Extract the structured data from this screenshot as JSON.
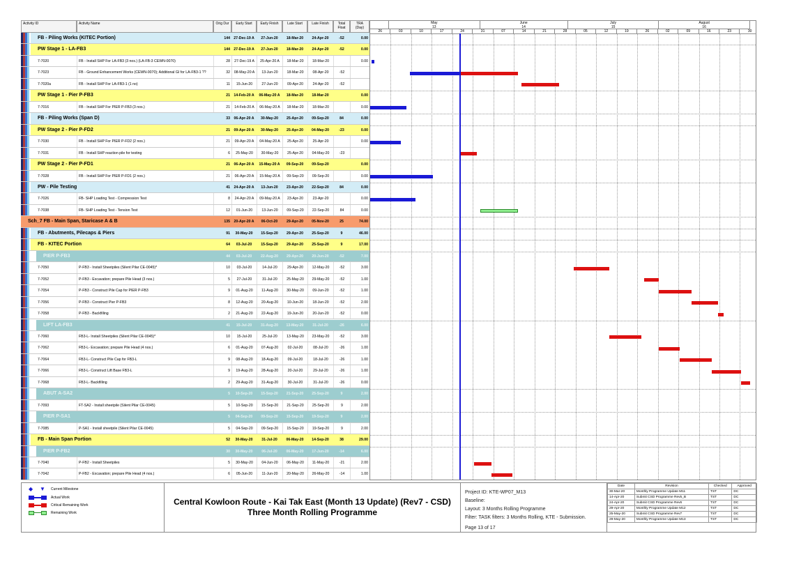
{
  "columns": {
    "activity_id": "Activity ID",
    "activity_name": "Activity Name",
    "orig_dur": "Orig Dur",
    "early_start": "Early Start",
    "early_finish": "Early Finish",
    "late_start": "Late Start",
    "late_finish": "Late Finish",
    "total_float": "Total Float",
    "tra": "TRA (Day)"
  },
  "timescale": {
    "months": [
      {
        "label": "May",
        "num": "13"
      },
      {
        "label": "June",
        "num": "14"
      },
      {
        "label": "July",
        "num": "15"
      },
      {
        "label": "August",
        "num": "16"
      }
    ],
    "weeks": [
      "26",
      "03",
      "10",
      "17",
      "24",
      "31",
      "07",
      "14",
      "21",
      "28",
      "05",
      "12",
      "19",
      "26",
      "02",
      "09",
      "16",
      "23",
      "30"
    ],
    "start_date": "2020-04-26",
    "data_date": "2020-05-25"
  },
  "colors": {
    "wbs1": "#d3ecf6",
    "wbs2": "#ffff88",
    "orange": "#f79b6c",
    "teal": "#9dcdcf",
    "actual": "#1a1ad6",
    "critical": "#dd1111",
    "remaining": "#90ee90",
    "data_date": "#1a1ad6"
  },
  "rows": [
    {
      "type": "g1",
      "id": "",
      "name": "FB - Piling Works (KITEC Portion)",
      "dur": "144",
      "es": "27-Dec-19 A",
      "ef": "27-Jun-20",
      "ls": "18-Mar-20",
      "lf": "24-Apr-20",
      "tf": "-52",
      "tra": "0.00"
    },
    {
      "type": "g2",
      "id": "",
      "name": "PW Stage 1 - LA-FB3",
      "dur": "144",
      "es": "27-Dec-19 A",
      "ef": "27-Jun-20",
      "ls": "18-Mar-20",
      "lf": "24-Apr-20",
      "tf": "-52",
      "tra": "0.00"
    },
    {
      "type": "a",
      "id": "7-7020",
      "name": "FB - Install SHP For LA-FB3 (3 nos.) (LA-FB-3 CEWN-0070)",
      "dur": "28",
      "es": "27-Dec-19 A",
      "ef": "25-Apr-20 A",
      "ls": "18-Mar-20",
      "lf": "18-Mar-20",
      "tf": "",
      "tra": "0.00",
      "bars": [
        [
          "actual",
          "2020-04-25",
          "2020-04-26"
        ]
      ]
    },
    {
      "type": "a",
      "id": "7-7023",
      "name": "FB - Ground Enhancement Works (CEWN-0070); Additional GI for LA-FB3-1 ??",
      "dur": "32",
      "es": "08-May-20 A",
      "ef": "13-Jun-20",
      "ls": "18-Mar-20",
      "lf": "08-Apr-20",
      "tf": "-52",
      "tra": "",
      "bars": [
        [
          "actual",
          "2020-05-08",
          "2020-05-25"
        ],
        [
          "critical",
          "2020-05-25",
          "2020-06-14"
        ]
      ]
    },
    {
      "type": "a",
      "id": "7-7020a",
      "name": "FB - Install SHP For LA-FB3-1 (1 no)",
      "dur": "11",
      "es": "15-Jun-20",
      "ef": "27-Jun-20",
      "ls": "09-Apr-20",
      "lf": "24-Apr-20",
      "tf": "-52",
      "tra": "",
      "bars": [
        [
          "critical",
          "2020-06-15",
          "2020-06-28"
        ]
      ]
    },
    {
      "type": "g2",
      "id": "",
      "name": "PW Stage 1 - Pier P-FB3",
      "dur": "21",
      "es": "14-Feb-20 A",
      "ef": "06-May-20 A",
      "ls": "18-Mar-20",
      "lf": "18-Mar-20",
      "tf": "",
      "tra": "0.00"
    },
    {
      "type": "a",
      "id": "7-7016",
      "name": "FB - Install SHP For PIER P-FB3 (3 nos.)",
      "dur": "21",
      "es": "14-Feb-20 A",
      "ef": "06-May-20 A",
      "ls": "18-Mar-20",
      "lf": "18-Mar-20",
      "tf": "",
      "tra": "0.00",
      "bars": [
        [
          "actual",
          "2020-04-20",
          "2020-05-07"
        ]
      ]
    },
    {
      "type": "g1",
      "id": "",
      "name": "FB - Piling Works (Span D)",
      "dur": "33",
      "es": "06-Apr-20 A",
      "ef": "30-May-20",
      "ls": "25-Apr-20",
      "lf": "09-Sep-20",
      "tf": "84",
      "tra": "0.00"
    },
    {
      "type": "g2",
      "id": "",
      "name": "PW Stage 2 - Pier P-FD2",
      "dur": "21",
      "es": "09-Apr-20 A",
      "ef": "30-May-20",
      "ls": "25-Apr-20",
      "lf": "04-May-20",
      "tf": "-23",
      "tra": "0.00"
    },
    {
      "type": "a",
      "id": "7-7030",
      "name": "FB - Install SHP For PIER P-FD2 (2 nos.)",
      "dur": "21",
      "es": "09-Apr-20 A",
      "ef": "04-May-20 A",
      "ls": "25-Apr-20",
      "lf": "25-Apr-20",
      "tf": "",
      "tra": "0.00",
      "bars": [
        [
          "actual",
          "2020-04-20",
          "2020-05-05"
        ]
      ]
    },
    {
      "type": "a",
      "id": "7-7031",
      "name": "FB - Install SHP reaction pile for testing",
      "dur": "6",
      "es": "25-May-20",
      "ef": "30-May-20",
      "ls": "25-Apr-20",
      "lf": "04-May-20",
      "tf": "-23",
      "tra": "",
      "bars": [
        [
          "critical",
          "2020-05-25",
          "2020-05-31"
        ]
      ]
    },
    {
      "type": "g2",
      "id": "",
      "name": "PW Stage 2 -  Pier P-FD1",
      "dur": "21",
      "es": "06-Apr-20 A",
      "ef": "15-May-20 A",
      "ls": "09-Sep-20",
      "lf": "09-Sep-20",
      "tf": "",
      "tra": "0.00"
    },
    {
      "type": "a",
      "id": "7-7028",
      "name": "FB - Install SHP For PIER P-FD1 (2 nos.)",
      "dur": "21",
      "es": "06-Apr-20 A",
      "ef": "15-May-20 A",
      "ls": "09-Sep-20",
      "lf": "09-Sep-20",
      "tf": "",
      "tra": "0.00",
      "bars": [
        [
          "actual",
          "2020-04-20",
          "2020-05-16"
        ]
      ]
    },
    {
      "type": "g1",
      "id": "",
      "name": "PW - Pile Testing",
      "dur": "41",
      "es": "24-Apr-20 A",
      "ef": "13-Jun-20",
      "ls": "23-Apr-20",
      "lf": "22-Sep-20",
      "tf": "84",
      "tra": "0.00"
    },
    {
      "type": "a",
      "id": "7-7026",
      "name": "FB- SHP Loading Test - Compression Test",
      "dur": "8",
      "es": "24-Apr-20 A",
      "ef": "09-May-20 A",
      "ls": "23-Apr-20",
      "lf": "23-Apr-20",
      "tf": "",
      "tra": "0.00",
      "bars": [
        [
          "actual",
          "2020-04-20",
          "2020-05-10"
        ]
      ]
    },
    {
      "type": "a",
      "id": "7-7038",
      "name": "FB- SHP Loading Test - Tension Test",
      "dur": "12",
      "es": "01-Jun-20",
      "ef": "13-Jun-20",
      "ls": "09-Sep-20",
      "lf": "22-Sep-20",
      "tf": "84",
      "tra": "0.00",
      "bars": [
        [
          "remaining",
          "2020-06-01",
          "2020-06-14"
        ]
      ]
    },
    {
      "type": "g0",
      "id": "",
      "name": "Sch_7 FB - Main Span, Staricase A & B",
      "dur": "135",
      "es": "20-Apr-20 A",
      "ef": "06-Oct-20",
      "ls": "29-Apr-20",
      "lf": "05-Nov-20",
      "tf": "25",
      "tra": "74.00"
    },
    {
      "type": "g1",
      "id": "",
      "name": "FB - Abutments, Pilecaps & Piers",
      "dur": "91",
      "es": "30-May-20",
      "ef": "15-Sep-20",
      "ls": "29-Apr-20",
      "lf": "25-Sep-20",
      "tf": "9",
      "tra": "46.00"
    },
    {
      "type": "g2",
      "id": "",
      "name": "FB - KITEC Portion",
      "dur": "64",
      "es": "03-Jul-20",
      "ef": "15-Sep-20",
      "ls": "29-Apr-20",
      "lf": "25-Sep-20",
      "tf": "9",
      "tra": "17.00"
    },
    {
      "type": "g3",
      "id": "",
      "name": "PIER P-FB3",
      "dur": "44",
      "es": "03-Jul-20",
      "ef": "22-Aug-20",
      "ls": "29-Apr-20",
      "lf": "20-Jun-20",
      "tf": "-52",
      "tra": "7.00"
    },
    {
      "type": "a",
      "id": "7-7050",
      "name": "P-FB3 - Install Sheetpiles (Silent Pilar CE-0045)*",
      "dur": "10",
      "es": "03-Jul-20",
      "ef": "14-Jul-20",
      "ls": "29-Apr-20",
      "lf": "12-May-20",
      "tf": "-52",
      "tra": "3.00",
      "bars": [
        [
          "critical",
          "2020-07-03",
          "2020-07-15"
        ]
      ]
    },
    {
      "type": "a",
      "id": "7-7052",
      "name": "P-FB3 -  Excavation; prepare Pile Head (3 nos.)",
      "dur": "5",
      "es": "27-Jul-20",
      "ef": "31-Jul-20",
      "ls": "25-May-20",
      "lf": "29-May-20",
      "tf": "-52",
      "tra": "1.00",
      "bars": [
        [
          "critical",
          "2020-07-27",
          "2020-08-01"
        ]
      ]
    },
    {
      "type": "a",
      "id": "7-7054",
      "name": "P-FB3 - Construct Pile Cap for PIER P-FB3",
      "dur": "9",
      "es": "01-Aug-20",
      "ef": "11-Aug-20",
      "ls": "30-May-20",
      "lf": "09-Jun-20",
      "tf": "-52",
      "tra": "1.00",
      "bars": [
        [
          "critical",
          "2020-08-01",
          "2020-08-12"
        ]
      ]
    },
    {
      "type": "a",
      "id": "7-7056",
      "name": "P-FB3 -  Construct Pier P-FB3",
      "dur": "8",
      "es": "12-Aug-20",
      "ef": "20-Aug-20",
      "ls": "10-Jun-20",
      "lf": "18-Jun-20",
      "tf": "-52",
      "tra": "2.00",
      "bars": [
        [
          "critical",
          "2020-08-12",
          "2020-08-21"
        ]
      ]
    },
    {
      "type": "a",
      "id": "7-7058",
      "name": "P-FB3 -  Backfilling",
      "dur": "2",
      "es": "21-Aug-20",
      "ef": "22-Aug-20",
      "ls": "19-Jun-20",
      "lf": "20-Jun-20",
      "tf": "-52",
      "tra": "0.00",
      "bars": [
        [
          "critical",
          "2020-08-21",
          "2020-08-23"
        ]
      ]
    },
    {
      "type": "g3",
      "id": "",
      "name": "LIFT LA-FB3",
      "dur": "41",
      "es": "15-Jul-20",
      "ef": "31-Aug-20",
      "ls": "13-May-20",
      "lf": "31-Jul-20",
      "tf": "-26",
      "tra": "6.00"
    },
    {
      "type": "a",
      "id": "7-7060",
      "name": "FB3-L- Install Sheetpiles (Silent Pilar CE-0045)*",
      "dur": "10",
      "es": "15-Jul-20",
      "ef": "25-Jul-20",
      "ls": "13-May-20",
      "lf": "23-May-20",
      "tf": "-52",
      "tra": "3.00",
      "bars": [
        [
          "critical",
          "2020-07-15",
          "2020-07-26"
        ]
      ]
    },
    {
      "type": "a",
      "id": "7-7062",
      "name": "FB3-L-  Excavation; prepare Pile Head (4 nos.)",
      "dur": "6",
      "es": "01-Aug-20",
      "ef": "07-Aug-20",
      "ls": "02-Jul-20",
      "lf": "08-Jul-20",
      "tf": "-26",
      "tra": "1.00",
      "bars": [
        [
          "critical",
          "2020-08-01",
          "2020-08-08"
        ]
      ]
    },
    {
      "type": "a",
      "id": "7-7064",
      "name": "FB3-L- Construct Pile Cap for FB3-L",
      "dur": "9",
      "es": "08-Aug-20",
      "ef": "18-Aug-20",
      "ls": "09-Jul-20",
      "lf": "18-Jul-20",
      "tf": "-26",
      "tra": "1.00",
      "bars": [
        [
          "critical",
          "2020-08-08",
          "2020-08-19"
        ]
      ]
    },
    {
      "type": "a",
      "id": "7-7066",
      "name": "FB3-L-  Construct Lift Base FB3-L",
      "dur": "9",
      "es": "19-Aug-20",
      "ef": "28-Aug-20",
      "ls": "20-Jul-20",
      "lf": "29-Jul-20",
      "tf": "-26",
      "tra": "1.00",
      "bars": [
        [
          "critical",
          "2020-08-19",
          "2020-08-29"
        ]
      ]
    },
    {
      "type": "a",
      "id": "7-7068",
      "name": "FB3-L-  Backfilling",
      "dur": "2",
      "es": "29-Aug-20",
      "ef": "31-Aug-20",
      "ls": "30-Jul-20",
      "lf": "31-Jul-20",
      "tf": "-26",
      "tra": "0.00",
      "bars": [
        [
          "critical",
          "2020-08-29",
          "2020-09-01"
        ]
      ]
    },
    {
      "type": "g3",
      "id": "",
      "name": "ABUT A-SA2",
      "dur": "5",
      "es": "10-Sep-20",
      "ef": "15-Sep-20",
      "ls": "21-Sep-20",
      "lf": "25-Sep-20",
      "tf": "9",
      "tra": "2.00"
    },
    {
      "type": "a",
      "id": "7-7093",
      "name": "FT-SA2 - Install sheetpile (Silent Pilar CE-0045)",
      "dur": "5",
      "es": "10-Sep-20",
      "ef": "15-Sep-20",
      "ls": "21-Sep-20",
      "lf": "25-Sep-20",
      "tf": "9",
      "tra": "2.00"
    },
    {
      "type": "g3",
      "id": "",
      "name": "PIER P-SA1",
      "dur": "5",
      "es": "04-Sep-20",
      "ef": "09-Sep-20",
      "ls": "15-Sep-20",
      "lf": "19-Sep-20",
      "tf": "9",
      "tra": "2.00"
    },
    {
      "type": "a",
      "id": "7-7085",
      "name": "P-SA1 - Install sheetpile (Silent Pilar CE-0045)",
      "dur": "5",
      "es": "04-Sep-20",
      "ef": "09-Sep-20",
      "ls": "15-Sep-20",
      "lf": "19-Sep-20",
      "tf": "9",
      "tra": "2.00"
    },
    {
      "type": "g2",
      "id": "",
      "name": "FB - Main Span Portion",
      "dur": "52",
      "es": "30-May-20",
      "ef": "31-Jul-20",
      "ls": "06-May-20",
      "lf": "14-Sep-20",
      "tf": "38",
      "tra": "29.00"
    },
    {
      "type": "g3",
      "id": "",
      "name": "PIER P-FB2",
      "dur": "30",
      "es": "30-May-20",
      "ef": "06-Jul-20",
      "ls": "06-May-20",
      "lf": "17-Jun-20",
      "tf": "-14",
      "tra": "6.00"
    },
    {
      "type": "a",
      "id": "7-7040",
      "name": "P-FB2 - Install Sheetpiles",
      "dur": "5",
      "es": "30-May-20",
      "ef": "04-Jun-20",
      "ls": "06-May-20",
      "lf": "11-May-20",
      "tf": "-21",
      "tra": "2.00",
      "bars": [
        [
          "critical",
          "2020-05-30",
          "2020-06-05"
        ]
      ]
    },
    {
      "type": "a",
      "id": "7-7042",
      "name": "P-FB2 -  Excavation; prepare Pile Head (4 nos.)",
      "dur": "6",
      "es": "05-Jun-20",
      "ef": "11-Jun-20",
      "ls": "20-May-20",
      "lf": "26-May-20",
      "tf": "-14",
      "tra": "1.00",
      "bars": [
        [
          "critical",
          "2020-06-05",
          "2020-06-12"
        ]
      ]
    }
  ],
  "legend": {
    "current_milestone": "Current Milestone",
    "actual_work": "Actual Work",
    "critical_remaining": "Critical Remaining Work",
    "remaining_work": "Remaining Work"
  },
  "title": {
    "line1": "Central Kowloon Route - Kai Tak East (Month 13 Update) (Rev7 - CSD)",
    "line2": "Three Month Rolling Programme"
  },
  "project": {
    "id": "Project ID: KTE-WP07_M13",
    "baseline": "Baseline:",
    "layout": "Layout: 3 Months Rolling Programme",
    "filter": "Filter: TASK filters: 3 Months Rolling, KTE - Submission.",
    "page": "Page 13 of 17"
  },
  "revisions": {
    "headers": [
      "Date",
      "Revision",
      "Checked",
      "Approved"
    ],
    "rows": [
      [
        "30-Mar-20",
        "Monthly Programme Update M11",
        "TST",
        "DC"
      ],
      [
        "14-Apr-20",
        "Submit CSD Programme Rev5_B",
        "TST",
        "DC"
      ],
      [
        "24-Apr-20",
        "Submit CSD Programme Rev6",
        "TST",
        "DC"
      ],
      [
        "29-Apr-20",
        "Monthly Programme Update M12",
        "TST",
        "DC"
      ],
      [
        "25-May-20",
        "Submit CSD Programme Rev7",
        "TST",
        "DC"
      ],
      [
        "29-May-20",
        "Monthly Programme Update M13",
        "TST",
        "DC"
      ]
    ]
  }
}
